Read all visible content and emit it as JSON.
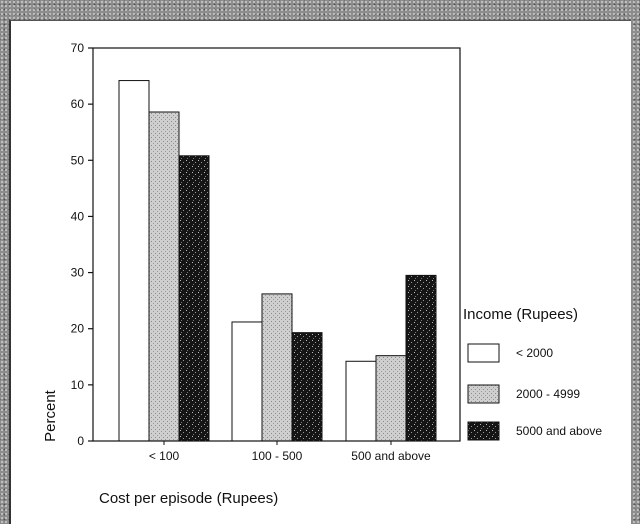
{
  "chart_data": {
    "type": "bar",
    "categories": [
      "< 100",
      "100 - 500",
      "500 and above"
    ],
    "series": [
      {
        "name": "< 2000",
        "values": [
          64.2,
          21.2,
          14.2
        ],
        "fill": "#ffffff"
      },
      {
        "name": "2000 - 4999",
        "values": [
          58.6,
          26.2,
          15.2
        ],
        "fill": "#c9c9c9"
      },
      {
        "name": "5000 and above",
        "values": [
          50.8,
          19.3,
          29.5
        ],
        "fill": "#1a1a1a"
      }
    ],
    "xlabel": "Cost per episode (Rupees)",
    "ylabel": "Percent",
    "ylim": [
      0,
      70
    ],
    "yticks": [
      0,
      10,
      20,
      30,
      40,
      50,
      60,
      70
    ],
    "legend_title": "Income (Rupees)",
    "legend_position": "right",
    "grid": false
  }
}
